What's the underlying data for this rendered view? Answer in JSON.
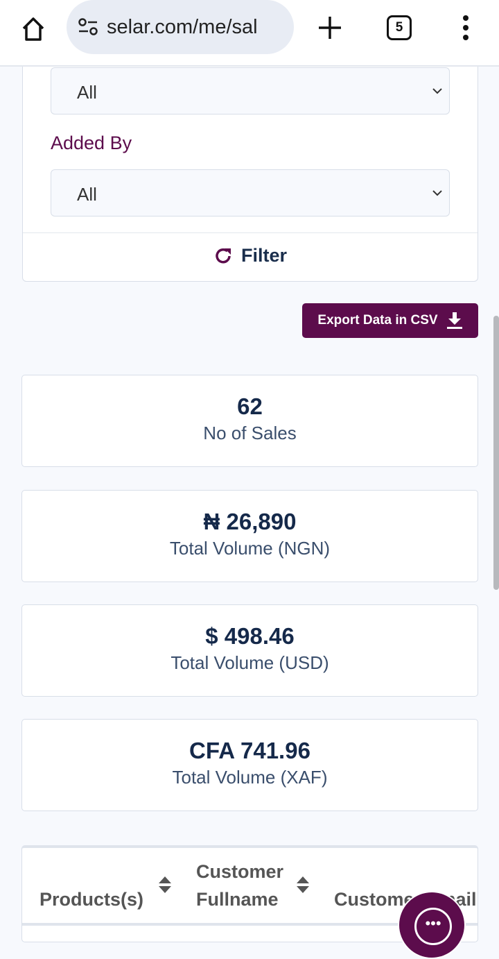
{
  "browser": {
    "url": "selar.com/me/sal",
    "tab_count": "5"
  },
  "filters": {
    "select1_value": "All",
    "added_by_label": "Added By",
    "added_by_value": "All",
    "filter_label": "Filter"
  },
  "export_label": "Export Data in CSV",
  "stats": [
    {
      "value": "62",
      "label": "No of Sales"
    },
    {
      "value": "₦ 26,890",
      "label": "Total Volume (NGN)"
    },
    {
      "value": "$ 498.46",
      "label": "Total Volume (USD)"
    },
    {
      "value": "CFA 741.96",
      "label": "Total Volume (XAF)"
    }
  ],
  "table": {
    "headers": [
      "Products(s)",
      "Customer Fullname",
      "Customer Email"
    ]
  },
  "colors": {
    "brand": "#5c0c4c",
    "text": "#1a2e4c"
  }
}
